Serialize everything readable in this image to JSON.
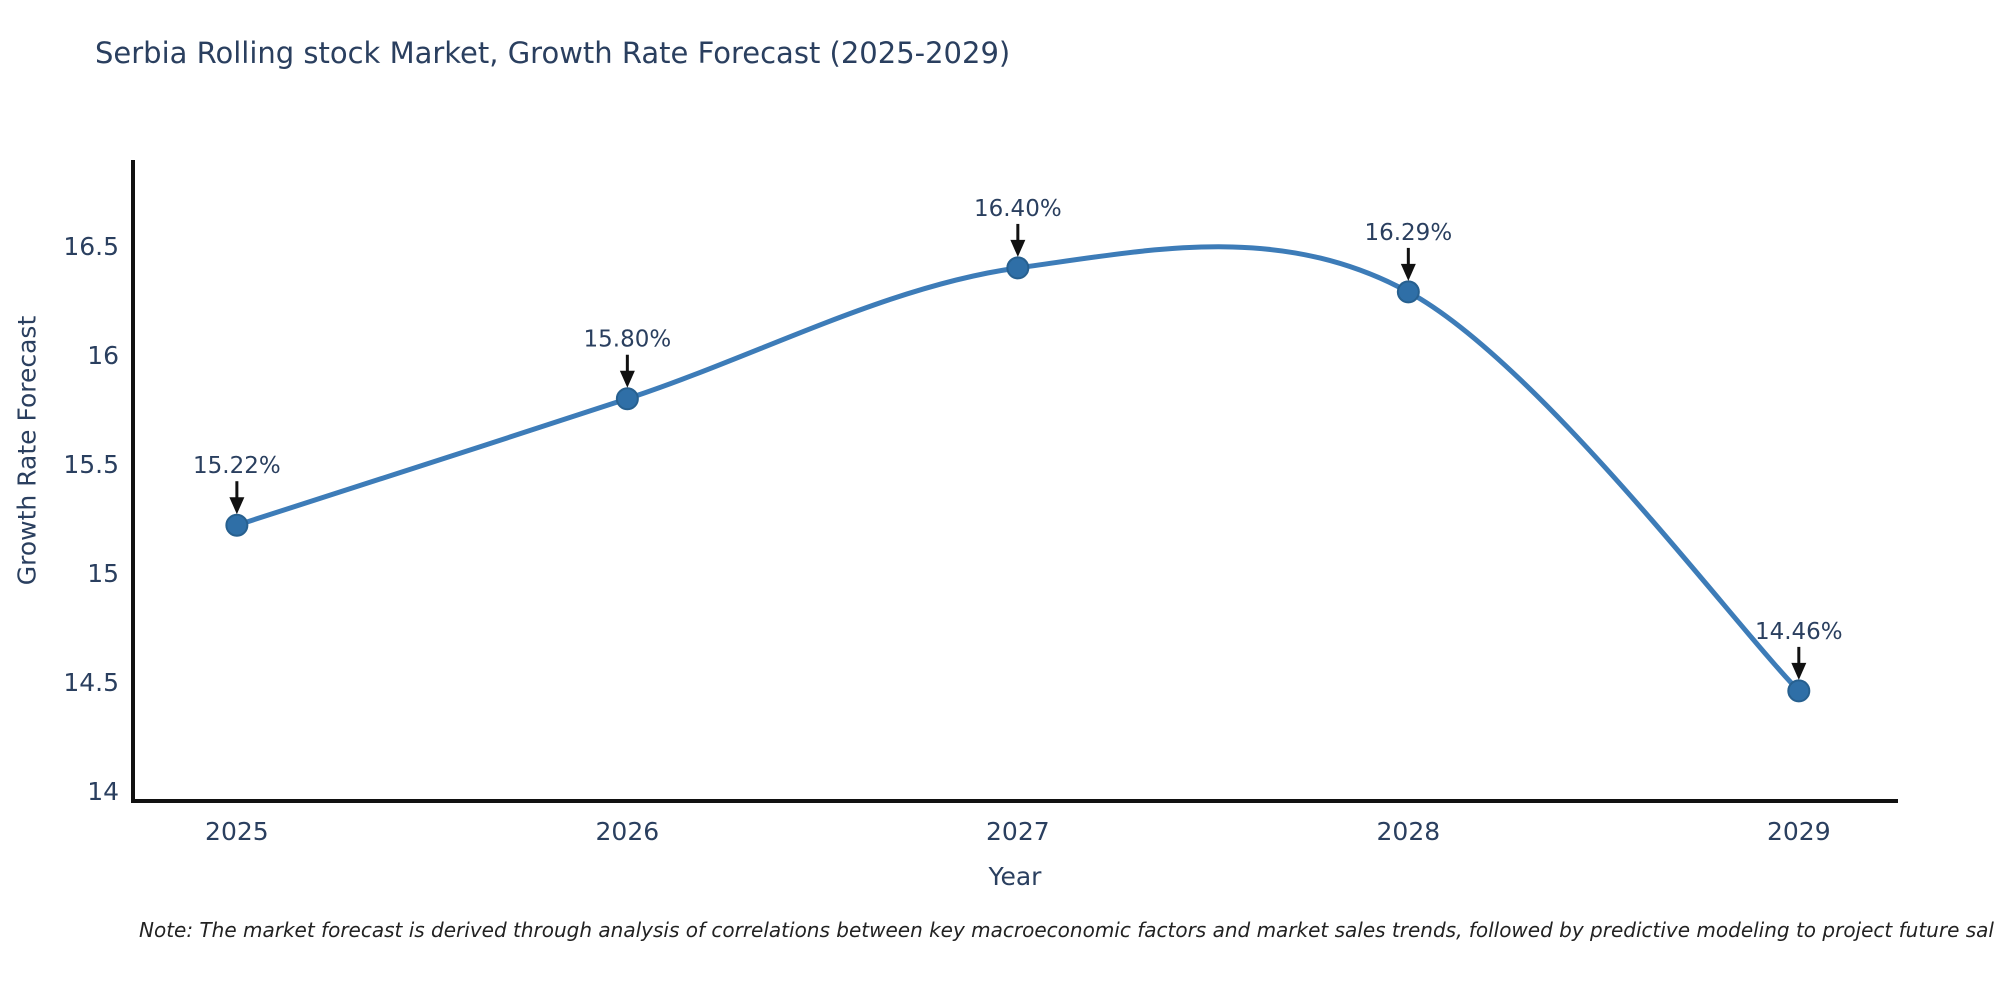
{
  "title": "Serbia Rolling stock Market, Growth Rate Forecast (2025-2029)",
  "note": "Note: The market forecast is derived through analysis of correlations between key macroeconomic factors and market sales trends, followed by predictive modeling to project future sal",
  "chart_data": {
    "type": "line",
    "title": "Serbia Rolling stock Market, Growth Rate Forecast (2025-2029)",
    "xlabel": "Year",
    "ylabel": "Growth Rate Forecast",
    "x": [
      2025,
      2026,
      2027,
      2028,
      2029
    ],
    "series": [
      {
        "name": "Growth Rate Forecast",
        "values": [
          15.22,
          15.8,
          16.4,
          16.29,
          14.46
        ],
        "point_labels": [
          "15.22%",
          "15.80%",
          "16.40%",
          "16.29%",
          "14.46%"
        ]
      }
    ],
    "xtick_labels": [
      "2025",
      "2026",
      "2027",
      "2028",
      "2029"
    ],
    "yticks": [
      14,
      14.5,
      15,
      15.5,
      16,
      16.5
    ],
    "xlim": [
      2024.734,
      2029.254
    ],
    "ylim": [
      13.955,
      16.895
    ],
    "line_shape": "spline",
    "grid": false,
    "legend_position": "none",
    "colors": {
      "line": "#3d7cb8",
      "marker_fill": "#2f6fa7",
      "marker_border": "#27608f",
      "axis_line": "#111111",
      "text": "#2a3f5f",
      "annotation_arrow": "#111111"
    }
  }
}
